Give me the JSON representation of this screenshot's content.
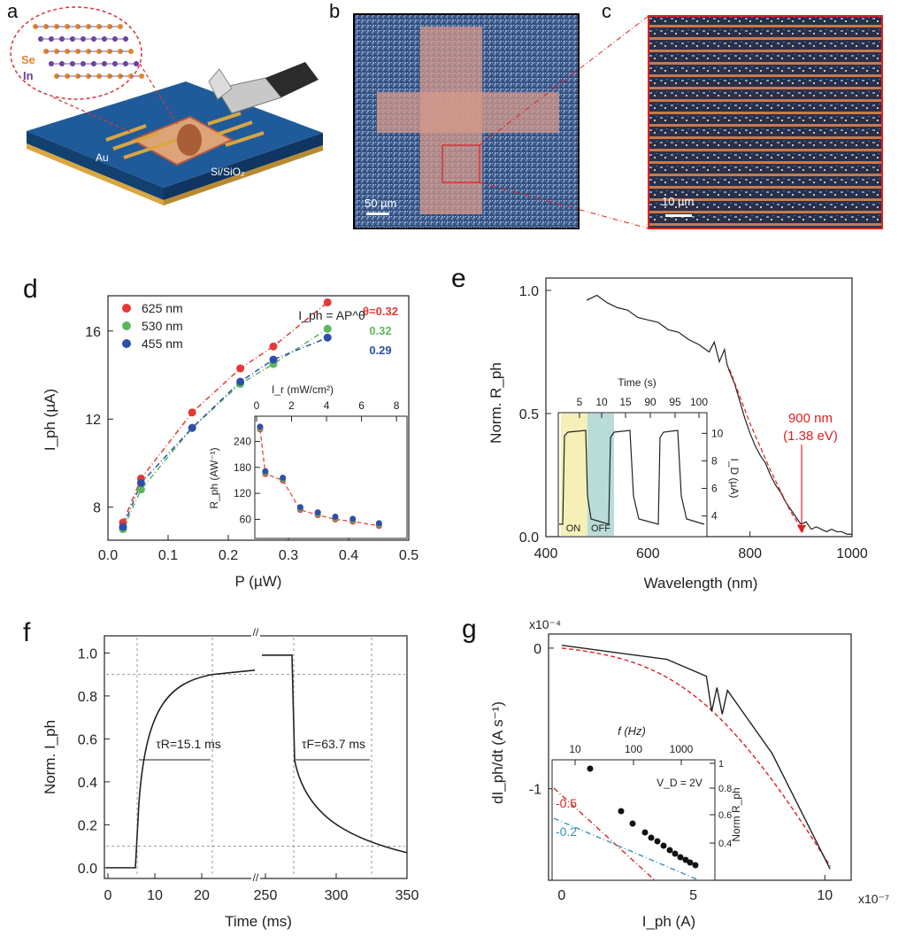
{
  "figure": {
    "panel_letters": {
      "a": "a",
      "b": "b",
      "c": "c",
      "d": "d",
      "e": "e",
      "f": "f",
      "g": "g"
    },
    "panel_a": {
      "labels": {
        "se": "Se",
        "in": "In",
        "au": "Au",
        "substrate": "Si/SiO₂"
      }
    },
    "panel_b": {
      "scalebar": "50 µm"
    },
    "panel_c": {
      "scalebar": "10 µm"
    }
  },
  "chart_data": [
    {
      "panel": "d",
      "type": "scatter",
      "xlabel": "P (µW)",
      "ylabel": "I_ph (µA)",
      "xlim": [
        0,
        0.5
      ],
      "ylim": [
        6.5,
        17.6
      ],
      "xticks": [
        "0.0",
        "0.1",
        "0.2",
        "0.3",
        "0.4",
        "0.5"
      ],
      "yticks": [
        "8",
        "12",
        "16"
      ],
      "ytick_values": [
        8,
        12,
        16
      ],
      "formula": "I_ph = AP^θ",
      "legend_position": "top-left",
      "series": [
        {
          "name": "625 nm",
          "color": "#e53935",
          "theta": "θ=0.32",
          "x": [
            0.025,
            0.055,
            0.14,
            0.22,
            0.275,
            0.365
          ],
          "y": [
            7.3,
            9.3,
            12.3,
            14.3,
            15.3,
            17.3
          ]
        },
        {
          "name": "530 nm",
          "color": "#5cb85c",
          "theta": "0.32",
          "x": [
            0.025,
            0.055,
            0.14,
            0.22,
            0.275,
            0.365
          ],
          "y": [
            7.0,
            8.8,
            11.6,
            13.6,
            14.5,
            16.1
          ]
        },
        {
          "name": "455 nm",
          "color": "#2e4fa8",
          "theta": "0.29",
          "x": [
            0.025,
            0.055,
            0.14,
            0.22,
            0.275,
            0.365
          ],
          "y": [
            7.1,
            9.1,
            11.6,
            13.7,
            14.7,
            15.7
          ]
        }
      ],
      "inset": {
        "type": "scatter",
        "xlabel": "I_r (mW/cm²)",
        "ylabel": "R_ph (AW⁻¹)",
        "xlim": [
          0,
          8.5
        ],
        "ylim": [
          20,
          290
        ],
        "xticks": [
          "0",
          "2",
          "4",
          "6",
          "8"
        ],
        "yticks": [
          "60",
          "120",
          "180",
          "240"
        ],
        "ytick_values": [
          60,
          120,
          180,
          240
        ],
        "x": [
          0.2,
          0.5,
          1.5,
          2.5,
          3.5,
          4.5,
          5.5,
          7.0
        ],
        "y": [
          268,
          165,
          150,
          82,
          70,
          60,
          55,
          45
        ]
      }
    },
    {
      "panel": "e",
      "type": "line",
      "xlabel": "Wavelength (nm)",
      "ylabel": "Norm. R_ph",
      "xlim": [
        400,
        1000
      ],
      "ylim": [
        0,
        1.05
      ],
      "xticks": [
        "400",
        "600",
        "800",
        "1000"
      ],
      "yticks": [
        "0.0",
        "0.5",
        "1.0"
      ],
      "annotation": [
        "900 nm",
        "(1.38 eV)"
      ],
      "series": [
        {
          "x": [
            480,
            500,
            520,
            540,
            560,
            580,
            600,
            620,
            640,
            660,
            680,
            700,
            720,
            730,
            740,
            750,
            755,
            760,
            770,
            780,
            790,
            800,
            810,
            820,
            830,
            840,
            850,
            860,
            870,
            880,
            890,
            900,
            910,
            920,
            930,
            940,
            950,
            960,
            970,
            980,
            990,
            1000
          ],
          "y": [
            0.96,
            0.98,
            0.95,
            0.93,
            0.92,
            0.89,
            0.88,
            0.87,
            0.84,
            0.83,
            0.8,
            0.78,
            0.75,
            0.79,
            0.71,
            0.76,
            0.7,
            0.67,
            0.62,
            0.55,
            0.48,
            0.42,
            0.37,
            0.33,
            0.3,
            0.25,
            0.21,
            0.18,
            0.14,
            0.11,
            0.08,
            0.05,
            0.06,
            0.03,
            0.04,
            0.03,
            0.02,
            0.03,
            0.02,
            0.02,
            0.01,
            0.01
          ]
        },
        {
          "name": "fit",
          "x": [
            760,
            800,
            840,
            880,
            905
          ],
          "y": [
            0.68,
            0.46,
            0.27,
            0.1,
            0.02
          ]
        }
      ],
      "inset": {
        "type": "line",
        "xlabel": "Time (s)",
        "ylabel": "I_D (µA)",
        "xticks": [
          "5",
          "10",
          "15",
          "90",
          "95",
          "100"
        ],
        "yticks": [
          "4",
          "6",
          "8",
          "10"
        ],
        "ytick_values": [
          4,
          6,
          8,
          10
        ],
        "ylim": [
          2.5,
          11.5
        ],
        "on_label": "ON",
        "off_label": "OFF"
      }
    },
    {
      "panel": "f",
      "type": "line",
      "xlabel": "Time (ms)",
      "ylabel": "Norm. I_ph",
      "xlim": [
        0,
        350
      ],
      "ylim": [
        -0.05,
        1.08
      ],
      "xticks": [
        "0",
        "10",
        "20",
        "250",
        "300",
        "350"
      ],
      "yticks": [
        "0.0",
        "0.2",
        "0.4",
        "0.6",
        "0.8",
        "1.0"
      ],
      "ytick_values": [
        0,
        0.2,
        0.4,
        0.6,
        0.8,
        1.0
      ],
      "annotations": [
        "τR=15.1 ms",
        "τF=63.7 ms"
      ],
      "rise_label": "15.1 ms",
      "fall_label": "63.7 ms"
    },
    {
      "panel": "g",
      "type": "line",
      "xlabel": "I_ph (A)",
      "ylabel": "dI_ph/dt (A s⁻¹)",
      "xlim": [
        -0.5,
        11
      ],
      "ylim": [
        -1.65,
        0.1
      ],
      "x_multiplier": "x10⁻⁷",
      "y_multiplier": "x10⁻⁴",
      "xticks": [
        "0",
        "5",
        "10"
      ],
      "yticks": [
        "0",
        "-1"
      ],
      "inset": {
        "type": "scatter",
        "xlabel": "f (Hz)",
        "ylabel": "Norm R_ph",
        "xticks": [
          "10",
          "100",
          "1000"
        ],
        "yticks": [
          "0.4",
          "0.6",
          "0.8",
          "1"
        ],
        "annotation": "V_D = 2V",
        "slopes": [
          "-0.5",
          "-0.2"
        ]
      }
    }
  ]
}
